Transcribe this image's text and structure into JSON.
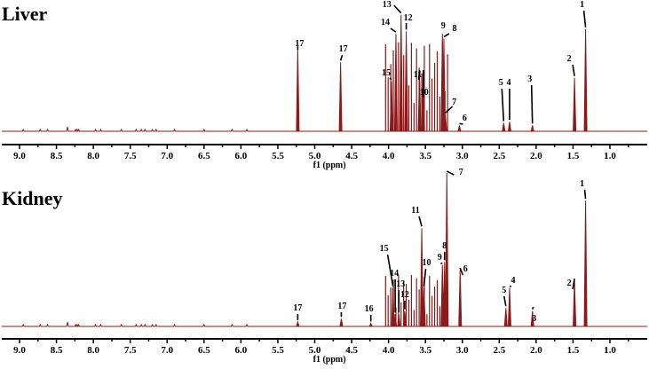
{
  "chart_data": [
    {
      "type": "line",
      "title": "Liver",
      "xlabel": "f1 (ppm)",
      "ylabel": "",
      "xlim": [
        9.3,
        0.75
      ],
      "x_reversed": true,
      "grid": false,
      "ticks": [
        "9.0",
        "8.5",
        "8.0",
        "7.5",
        "7.0",
        "6.5",
        "6.0",
        "5.5",
        "5.0",
        "4.5",
        "4.0",
        "3.5",
        "3.0",
        "2.5",
        "2.0",
        "1.5",
        "1.0"
      ],
      "line_color": "#8b1a1a",
      "peaks": [
        {
          "label": "1",
          "ppm": 1.33,
          "rel_height": 0.86
        },
        {
          "label": "2",
          "ppm": 1.48,
          "rel_height": 0.45
        },
        {
          "label": "3",
          "ppm": 2.05,
          "rel_height": 0.05
        },
        {
          "label": "4",
          "ppm": 2.36,
          "rel_height": 0.08
        },
        {
          "label": "5",
          "ppm": 2.44,
          "rel_height": 0.07
        },
        {
          "label": "6",
          "ppm": 3.04,
          "rel_height": 0.05
        },
        {
          "label": "7",
          "ppm": 3.23,
          "rel_height": 0.14
        },
        {
          "label": "8",
          "ppm": 3.25,
          "rel_height": 0.78
        },
        {
          "label": "9",
          "ppm": 3.27,
          "rel_height": 0.82
        },
        {
          "label": "10",
          "ppm": 3.53,
          "rel_height": 0.5
        },
        {
          "label": "11",
          "ppm": 3.58,
          "rel_height": 0.5
        },
        {
          "label": "12",
          "ppm": 3.76,
          "rel_height": 0.84
        },
        {
          "label": "13",
          "ppm": 3.83,
          "rel_height": 0.98
        },
        {
          "label": "14",
          "ppm": 3.9,
          "rel_height": 0.82
        },
        {
          "label": "15",
          "ppm": 3.96,
          "rel_height": 0.42
        },
        {
          "label": "17",
          "ppm": 4.65,
          "rel_height": 0.58
        },
        {
          "label": "17",
          "ppm": 5.23,
          "rel_height": 0.7
        }
      ]
    },
    {
      "type": "line",
      "title": "Kidney",
      "xlabel": "f1 (ppm)",
      "ylabel": "",
      "xlim": [
        9.3,
        0.75
      ],
      "x_reversed": true,
      "grid": false,
      "ticks": [
        "9.0",
        "8.5",
        "8.0",
        "7.5",
        "7.0",
        "6.5",
        "6.0",
        "5.5",
        "5.0",
        "4.5",
        "4.0",
        "3.5",
        "3.0",
        "2.5",
        "2.0",
        "1.5",
        "1.0"
      ],
      "line_color": "#8b1a1a",
      "peaks": [
        {
          "label": "1",
          "ppm": 1.33,
          "rel_height": 0.82
        },
        {
          "label": "2",
          "ppm": 1.48,
          "rel_height": 0.3
        },
        {
          "label": "3",
          "ppm": 2.05,
          "rel_height": 0.1
        },
        {
          "label": "4",
          "ppm": 2.36,
          "rel_height": 0.25
        },
        {
          "label": "5",
          "ppm": 2.41,
          "rel_height": 0.12
        },
        {
          "label": "6",
          "ppm": 3.03,
          "rel_height": 0.37
        },
        {
          "label": "7",
          "ppm": 3.21,
          "rel_height": 1.0
        },
        {
          "label": "8",
          "ppm": 3.24,
          "rel_height": 0.42
        },
        {
          "label": "9",
          "ppm": 3.27,
          "rel_height": 0.4
        },
        {
          "label": "10",
          "ppm": 3.52,
          "rel_height": 0.25
        },
        {
          "label": "11",
          "ppm": 3.55,
          "rel_height": 0.64
        },
        {
          "label": "12",
          "ppm": 3.78,
          "rel_height": 0.1
        },
        {
          "label": "13",
          "ppm": 3.86,
          "rel_height": 0.08
        },
        {
          "label": "14",
          "ppm": 3.91,
          "rel_height": 0.08
        },
        {
          "label": "15",
          "ppm": 3.94,
          "rel_height": 0.25
        },
        {
          "label": "16",
          "ppm": 4.24,
          "rel_height": 0.02
        },
        {
          "label": "17",
          "ppm": 4.64,
          "rel_height": 0.05
        },
        {
          "label": "17",
          "ppm": 5.23,
          "rel_height": 0.03
        }
      ]
    }
  ],
  "panels": {
    "liver": {
      "title": "Liver",
      "xlabel": "f1 (ppm)"
    },
    "kidney": {
      "title": "Kidney",
      "xlabel": "f1 (ppm)"
    }
  }
}
